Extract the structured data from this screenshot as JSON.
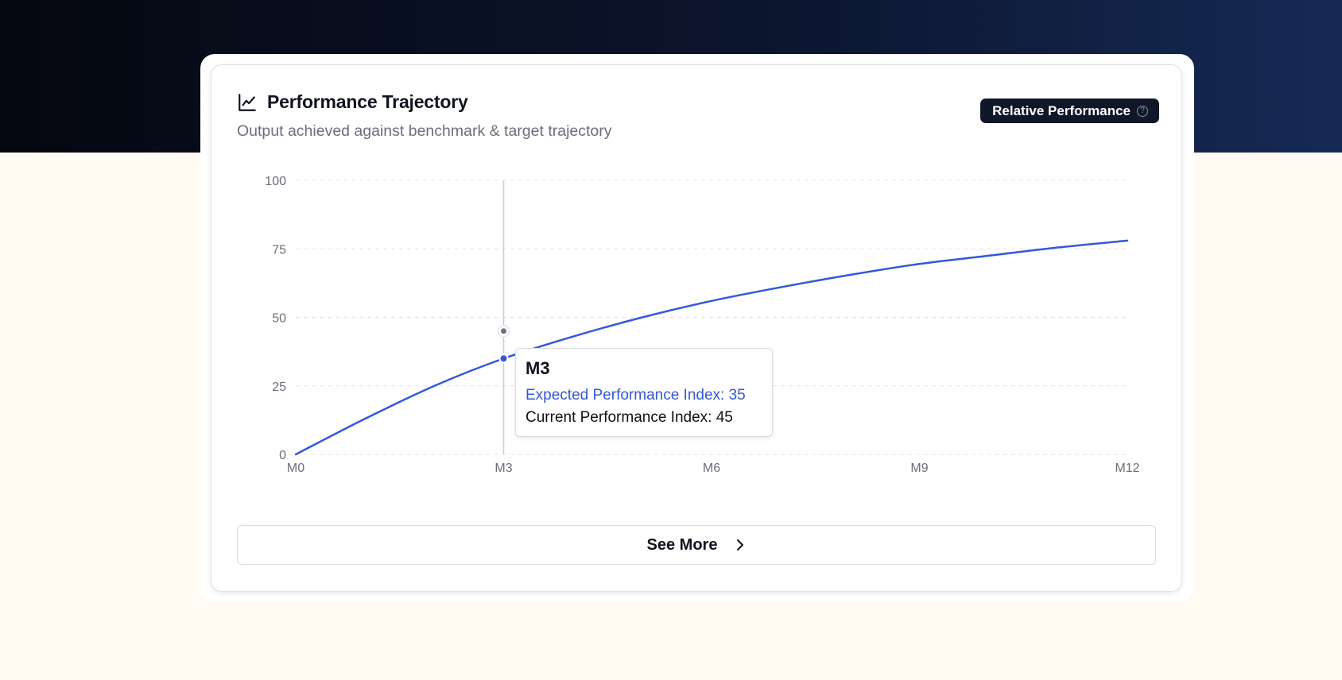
{
  "card": {
    "title": "Performance Trajectory",
    "subtitle": "Output achieved against benchmark & target trajectory",
    "badge_label": "Relative Performance",
    "badge_help_glyph": "?",
    "title_icon": "line-chart-icon",
    "help_icon": "help-circle-icon"
  },
  "tooltip": {
    "title": "M3",
    "expected_text": "Expected Performance Index: 35",
    "current_text": "Current Performance Index: 45"
  },
  "see_more": {
    "label": "See More",
    "icon": "chevron-right-icon"
  },
  "colors": {
    "accent": "#3358dc",
    "hover_marker": "#6b7280",
    "badge_bg": "#0f1728",
    "header_band": "#0c1630",
    "page_bg": "#fffaf2"
  },
  "chart_data": {
    "type": "line",
    "title": "Performance Trajectory",
    "subtitle": "Output achieved against benchmark & target trajectory",
    "x": [
      0,
      1,
      2,
      3,
      4,
      5,
      6,
      7,
      8,
      9,
      10,
      11,
      12
    ],
    "x_tick_values": [
      0,
      3,
      6,
      9,
      12
    ],
    "x_tick_labels": [
      "M0",
      "M3",
      "M6",
      "M9",
      "M12"
    ],
    "y_ticks": [
      0,
      25,
      50,
      75,
      100
    ],
    "ylim": [
      0,
      100
    ],
    "grid": true,
    "series": [
      {
        "name": "Expected Performance Index",
        "color": "#3358dc",
        "values": [
          0,
          13,
          25,
          35,
          43,
          50,
          56,
          61,
          65.5,
          69.5,
          72.5,
          75.5,
          78
        ]
      },
      {
        "name": "Current Performance Index",
        "color": "#6b7280",
        "points": [
          {
            "x": 3,
            "y": 45
          }
        ]
      }
    ],
    "hover": {
      "x": 3,
      "label": "M3"
    }
  }
}
